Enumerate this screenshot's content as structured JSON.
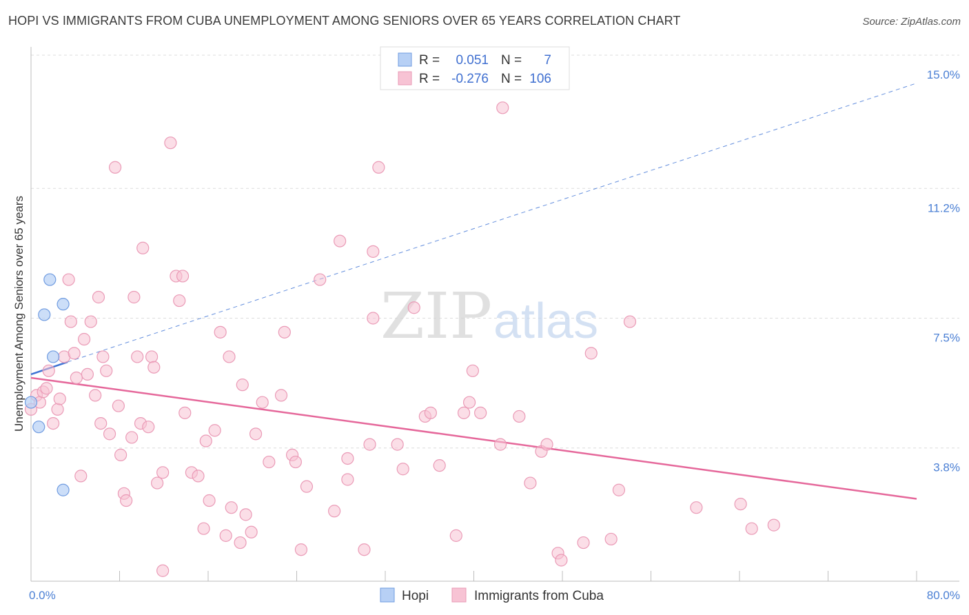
{
  "title": "HOPI VS IMMIGRANTS FROM CUBA UNEMPLOYMENT AMONG SENIORS OVER 65 YEARS CORRELATION CHART",
  "source": "Source: ZipAtlas.com",
  "watermark": {
    "zip": "ZIP",
    "atlas": "atlas"
  },
  "colors": {
    "hopi_fill": "#b7d0f5",
    "hopi_stroke": "#6f9be0",
    "hopi_line": "#3c72d4",
    "cuba_fill": "#f7c3d4",
    "cuba_stroke": "#ea9ab6",
    "cuba_line": "#e5679a",
    "tick_text": "#4a7fd4",
    "grid": "#dcdcdc"
  },
  "stats_box": {
    "rows": [
      {
        "r_label": "R =",
        "r_value": "0.051",
        "n_label": "N =",
        "n_value": "7"
      },
      {
        "r_label": "R =",
        "r_value": "-0.276",
        "n_label": "N =",
        "n_value": "106"
      }
    ]
  },
  "chart_data": {
    "type": "scatter",
    "title": "HOPI VS IMMIGRANTS FROM CUBA UNEMPLOYMENT AMONG SENIORS OVER 65 YEARS CORRELATION CHART",
    "xlabel": "",
    "ylabel": "Unemployment Among Seniors over 65 years",
    "xlim": [
      0,
      80
    ],
    "ylim": [
      0,
      15.0
    ],
    "x_tick_labels": [
      {
        "value": 0,
        "label": "0.0%"
      },
      {
        "value": 80,
        "label": "80.0%"
      }
    ],
    "y_tick_labels": [
      {
        "value": 3.8,
        "label": "3.8%"
      },
      {
        "value": 7.5,
        "label": "7.5%"
      },
      {
        "value": 11.2,
        "label": "11.2%"
      },
      {
        "value": 15.0,
        "label": "15.0%"
      }
    ],
    "grid": true,
    "legend_position": "bottom-center",
    "series": [
      {
        "name": "Hopi",
        "r": 0.051,
        "n": 7,
        "trend": {
          "x": [
            0.0,
            3.3
          ],
          "y": [
            5.9,
            6.25
          ]
        },
        "projection": {
          "x": [
            3.3,
            80.0
          ],
          "y": [
            6.25,
            14.2
          ]
        },
        "points": [
          [
            0.0,
            5.1
          ],
          [
            0.7,
            4.4
          ],
          [
            1.2,
            7.6
          ],
          [
            1.7,
            8.6
          ],
          [
            2.0,
            6.4
          ],
          [
            2.9,
            7.9
          ],
          [
            2.9,
            2.6
          ]
        ]
      },
      {
        "name": "Immigrants from Cuba",
        "r": -0.276,
        "n": 106,
        "trend": {
          "x": [
            0.0,
            80.0
          ],
          "y": [
            5.8,
            2.35
          ]
        },
        "points": [
          [
            0.0,
            4.9
          ],
          [
            0.5,
            5.3
          ],
          [
            0.8,
            5.1
          ],
          [
            1.1,
            5.4
          ],
          [
            1.4,
            5.5
          ],
          [
            1.6,
            6.0
          ],
          [
            2.0,
            4.5
          ],
          [
            2.4,
            4.9
          ],
          [
            2.6,
            5.2
          ],
          [
            3.0,
            6.4
          ],
          [
            3.4,
            8.6
          ],
          [
            3.6,
            7.4
          ],
          [
            3.9,
            6.5
          ],
          [
            4.1,
            5.8
          ],
          [
            4.5,
            3.0
          ],
          [
            4.8,
            6.9
          ],
          [
            5.1,
            5.9
          ],
          [
            5.4,
            7.4
          ],
          [
            5.8,
            5.3
          ],
          [
            6.1,
            8.1
          ],
          [
            6.3,
            4.5
          ],
          [
            6.5,
            6.4
          ],
          [
            6.8,
            6.0
          ],
          [
            7.1,
            4.2
          ],
          [
            7.6,
            11.8
          ],
          [
            7.9,
            5.0
          ],
          [
            8.1,
            3.6
          ],
          [
            8.4,
            2.5
          ],
          [
            8.6,
            2.3
          ],
          [
            9.1,
            4.1
          ],
          [
            9.3,
            8.1
          ],
          [
            9.6,
            6.4
          ],
          [
            9.9,
            4.5
          ],
          [
            10.1,
            9.5
          ],
          [
            10.6,
            4.4
          ],
          [
            10.9,
            6.4
          ],
          [
            11.1,
            6.1
          ],
          [
            11.4,
            2.8
          ],
          [
            11.9,
            3.1
          ],
          [
            11.9,
            0.3
          ],
          [
            12.6,
            12.5
          ],
          [
            13.1,
            8.7
          ],
          [
            13.4,
            8.0
          ],
          [
            13.7,
            8.7
          ],
          [
            13.9,
            4.8
          ],
          [
            14.5,
            3.1
          ],
          [
            15.1,
            3.0
          ],
          [
            15.6,
            1.5
          ],
          [
            15.8,
            4.0
          ],
          [
            16.1,
            2.3
          ],
          [
            16.6,
            4.3
          ],
          [
            17.1,
            7.1
          ],
          [
            17.6,
            1.3
          ],
          [
            17.9,
            6.4
          ],
          [
            18.1,
            2.1
          ],
          [
            18.9,
            1.1
          ],
          [
            19.1,
            5.6
          ],
          [
            19.4,
            1.9
          ],
          [
            19.9,
            1.4
          ],
          [
            20.3,
            4.2
          ],
          [
            20.9,
            5.1
          ],
          [
            21.5,
            3.4
          ],
          [
            22.6,
            5.3
          ],
          [
            22.9,
            7.1
          ],
          [
            23.6,
            3.6
          ],
          [
            23.9,
            3.4
          ],
          [
            24.4,
            0.9
          ],
          [
            24.9,
            2.7
          ],
          [
            26.1,
            8.6
          ],
          [
            27.4,
            2.0
          ],
          [
            27.9,
            9.7
          ],
          [
            28.6,
            3.5
          ],
          [
            28.6,
            2.9
          ],
          [
            30.1,
            0.9
          ],
          [
            30.6,
            3.9
          ],
          [
            30.9,
            9.4
          ],
          [
            30.9,
            7.5
          ],
          [
            31.4,
            11.8
          ],
          [
            33.1,
            3.9
          ],
          [
            33.6,
            3.2
          ],
          [
            34.6,
            7.8
          ],
          [
            35.6,
            4.7
          ],
          [
            36.1,
            4.8
          ],
          [
            36.9,
            3.3
          ],
          [
            38.4,
            1.3
          ],
          [
            39.1,
            4.8
          ],
          [
            39.6,
            5.1
          ],
          [
            39.9,
            6.0
          ],
          [
            40.6,
            4.8
          ],
          [
            42.6,
            13.5
          ],
          [
            42.4,
            3.9
          ],
          [
            44.1,
            4.7
          ],
          [
            45.1,
            2.8
          ],
          [
            46.1,
            3.7
          ],
          [
            46.6,
            3.9
          ],
          [
            47.6,
            0.8
          ],
          [
            47.9,
            0.6
          ],
          [
            49.9,
            1.1
          ],
          [
            50.6,
            6.5
          ],
          [
            52.4,
            1.2
          ],
          [
            53.1,
            2.6
          ],
          [
            54.1,
            7.4
          ],
          [
            60.1,
            2.1
          ],
          [
            64.1,
            2.2
          ],
          [
            65.1,
            1.5
          ],
          [
            67.1,
            1.6
          ]
        ]
      }
    ]
  },
  "legend": {
    "items": [
      {
        "label": "Hopi"
      },
      {
        "label": "Immigrants from Cuba"
      }
    ]
  }
}
